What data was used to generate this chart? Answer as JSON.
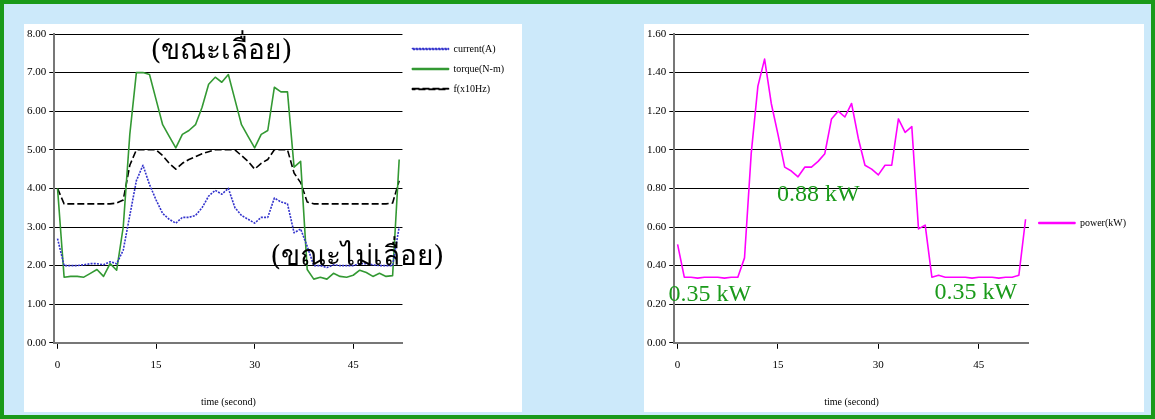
{
  "chart_data": [
    {
      "type": "line",
      "xlabel": "time (second)",
      "x": [
        0,
        1,
        2,
        3,
        4,
        5,
        6,
        7,
        8,
        9,
        10,
        11,
        12,
        13,
        14,
        15,
        16,
        17,
        18,
        19,
        20,
        21,
        22,
        23,
        24,
        25,
        26,
        27,
        28,
        29,
        30,
        31,
        32,
        33,
        34,
        35,
        36,
        37,
        38,
        39,
        40,
        41,
        42,
        43,
        44,
        45,
        46,
        47,
        48,
        49,
        50,
        51,
        52
      ],
      "xlim": [
        -0.5,
        52.5
      ],
      "xticks": [
        0,
        15,
        30,
        45
      ],
      "ylim": [
        0,
        8
      ],
      "yticks": [
        {
          "value": 0,
          "label": "0.00"
        },
        {
          "value": 1,
          "label": "1.00"
        },
        {
          "value": 2,
          "label": "2.00"
        },
        {
          "value": 3,
          "label": "3.00"
        },
        {
          "value": 4,
          "label": "4.00"
        },
        {
          "value": 5,
          "label": "5.00"
        },
        {
          "value": 6,
          "label": "6.00"
        },
        {
          "value": 7,
          "label": "7.00"
        },
        {
          "value": 8,
          "label": "8.00"
        }
      ],
      "grid": "y",
      "legend": "top right",
      "marker": "none",
      "series": [
        {
          "name": "current(A)",
          "color": "#3333cc",
          "line_style": "dotted",
          "values": [
            2.7,
            2.0,
            2.0,
            2.0,
            2.02,
            2.05,
            2.05,
            2.02,
            2.1,
            2.05,
            2.4,
            3.3,
            4.2,
            4.6,
            4.1,
            3.7,
            3.35,
            3.2,
            3.1,
            3.25,
            3.25,
            3.3,
            3.5,
            3.8,
            3.95,
            3.85,
            4.0,
            3.5,
            3.3,
            3.2,
            3.1,
            3.25,
            3.25,
            3.75,
            3.65,
            3.6,
            2.85,
            2.95,
            2.5,
            2.0,
            2.0,
            1.95,
            2.02,
            2.0,
            2.0,
            2.0,
            2.05,
            2.05,
            2.02,
            2.0,
            2.0,
            2.0,
            3.0
          ]
        },
        {
          "name": "torque(N-m)",
          "color": "#339933",
          "line_style": "solid",
          "values": [
            4.0,
            1.7,
            1.72,
            1.72,
            1.7,
            1.8,
            1.9,
            1.72,
            2.05,
            1.88,
            3.0,
            5.4,
            7.0,
            7.0,
            6.95,
            6.3,
            5.65,
            5.35,
            5.05,
            5.4,
            5.5,
            5.65,
            6.1,
            6.7,
            6.88,
            6.75,
            6.95,
            6.3,
            5.65,
            5.35,
            5.05,
            5.4,
            5.5,
            6.62,
            6.5,
            6.5,
            4.55,
            4.7,
            1.9,
            1.65,
            1.7,
            1.65,
            1.8,
            1.72,
            1.7,
            1.75,
            1.88,
            1.82,
            1.72,
            1.8,
            1.72,
            1.74,
            4.75
          ]
        },
        {
          "name": "f(x10Hz)",
          "color": "#000000",
          "line_style": "dashed",
          "values": [
            4.0,
            3.6,
            3.6,
            3.6,
            3.6,
            3.6,
            3.6,
            3.6,
            3.6,
            3.62,
            3.7,
            4.6,
            5.0,
            5.0,
            5.0,
            5.0,
            4.85,
            4.65,
            4.5,
            4.65,
            4.75,
            4.82,
            4.9,
            4.95,
            5.0,
            5.0,
            5.0,
            5.0,
            4.85,
            4.7,
            4.5,
            4.65,
            4.75,
            5.0,
            5.0,
            5.0,
            4.4,
            4.15,
            3.65,
            3.6,
            3.6,
            3.6,
            3.6,
            3.6,
            3.6,
            3.6,
            3.6,
            3.6,
            3.6,
            3.6,
            3.6,
            3.62,
            4.2
          ]
        }
      ],
      "annotations": [
        "(ขณะเลื่อย)",
        "(ขณะไม่เลื่อย)"
      ]
    },
    {
      "type": "line",
      "xlabel": "time (second)",
      "x": [
        0,
        1,
        2,
        3,
        4,
        5,
        6,
        7,
        8,
        9,
        10,
        11,
        12,
        13,
        14,
        15,
        16,
        17,
        18,
        19,
        20,
        21,
        22,
        23,
        24,
        25,
        26,
        27,
        28,
        29,
        30,
        31,
        32,
        33,
        34,
        35,
        36,
        37,
        38,
        39,
        40,
        41,
        42,
        43,
        44,
        45,
        46,
        47,
        48,
        49,
        50,
        51,
        52
      ],
      "xlim": [
        -0.5,
        52.5
      ],
      "xticks": [
        0,
        15,
        30,
        45
      ],
      "ylim": [
        0,
        1.6
      ],
      "yticks": [
        {
          "value": 0,
          "label": "0.00"
        },
        {
          "value": 0.2,
          "label": "0.20"
        },
        {
          "value": 0.4,
          "label": "0.40"
        },
        {
          "value": 0.6,
          "label": "0.60"
        },
        {
          "value": 0.8,
          "label": "0.80"
        },
        {
          "value": 1.0,
          "label": "1.00"
        },
        {
          "value": 1.2,
          "label": "1.20"
        },
        {
          "value": 1.4,
          "label": "1.40"
        },
        {
          "value": 1.6,
          "label": "1.60"
        }
      ],
      "grid": "y",
      "legend": "right",
      "marker": "none",
      "series": [
        {
          "name": "power(kW)",
          "color": "#ff00ff",
          "line_style": "solid",
          "values": [
            0.51,
            0.34,
            0.34,
            0.335,
            0.34,
            0.34,
            0.34,
            0.335,
            0.34,
            0.34,
            0.44,
            0.98,
            1.33,
            1.47,
            1.24,
            1.08,
            0.91,
            0.89,
            0.86,
            0.91,
            0.91,
            0.94,
            0.98,
            1.16,
            1.2,
            1.17,
            1.24,
            1.06,
            0.92,
            0.9,
            0.87,
            0.92,
            0.92,
            1.16,
            1.09,
            1.12,
            0.59,
            0.61,
            0.34,
            0.35,
            0.34,
            0.34,
            0.34,
            0.34,
            0.335,
            0.34,
            0.34,
            0.34,
            0.335,
            0.34,
            0.34,
            0.35,
            0.64
          ]
        }
      ],
      "annotations": [
        "0.35 kW",
        "0.88 kW",
        "0.35 kW"
      ]
    }
  ]
}
